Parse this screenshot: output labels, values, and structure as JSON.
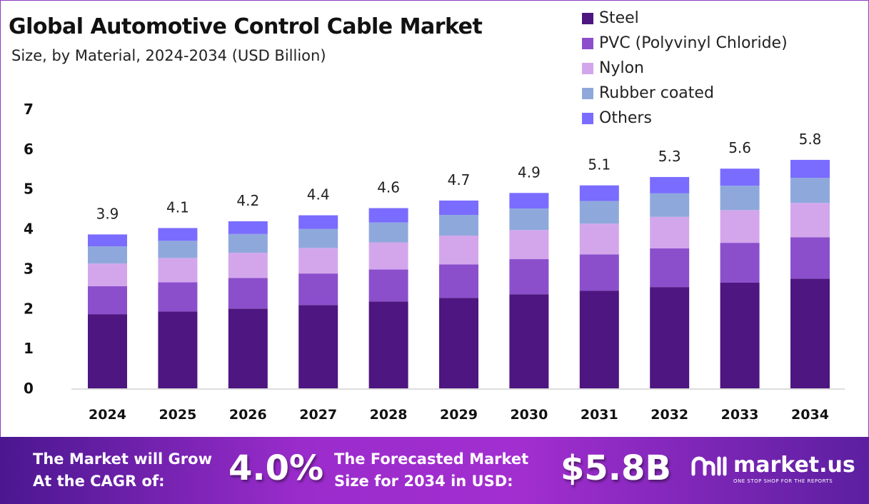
{
  "chart_data": {
    "type": "bar",
    "stacked": true,
    "title": "Global Automotive Control Cable Market",
    "subtitle": "Size, by Material, 2024-2034 (USD Billion)",
    "categories": [
      "2024",
      "2025",
      "2026",
      "2027",
      "2028",
      "2029",
      "2030",
      "2031",
      "2032",
      "2033",
      "2034"
    ],
    "series": [
      {
        "name": "Steel",
        "color": "#4e1680",
        "values": [
          1.86,
          1.93,
          2.0,
          2.09,
          2.18,
          2.27,
          2.36,
          2.45,
          2.54,
          2.65,
          2.75
        ]
      },
      {
        "name": "PVC (Polyvinyl Chloride)",
        "color": "#8b4fcc",
        "values": [
          0.7,
          0.73,
          0.77,
          0.79,
          0.8,
          0.84,
          0.88,
          0.91,
          0.97,
          1.0,
          1.04
        ]
      },
      {
        "name": "Nylon",
        "color": "#d3a6ec",
        "values": [
          0.57,
          0.61,
          0.63,
          0.64,
          0.68,
          0.72,
          0.73,
          0.77,
          0.79,
          0.82,
          0.86
        ]
      },
      {
        "name": "Rubber coated",
        "color": "#8fa8dc",
        "values": [
          0.43,
          0.43,
          0.47,
          0.48,
          0.5,
          0.52,
          0.54,
          0.57,
          0.59,
          0.61,
          0.63
        ]
      },
      {
        "name": "Others",
        "color": "#7a6cff",
        "values": [
          0.3,
          0.32,
          0.32,
          0.34,
          0.36,
          0.36,
          0.39,
          0.39,
          0.41,
          0.43,
          0.45
        ]
      }
    ],
    "totals": [
      "3.9",
      "4.1",
      "4.2",
      "4.4",
      "4.6",
      "4.7",
      "4.9",
      "5.1",
      "5.3",
      "5.6",
      "5.8"
    ],
    "yticks": [
      "0",
      "1",
      "2",
      "3",
      "4",
      "5",
      "6",
      "7"
    ],
    "ylim": [
      0,
      7
    ],
    "grid": false,
    "legend": "top-right"
  },
  "banner": {
    "cagr_label_1": "The Market will Grow",
    "cagr_label_2": "At the CAGR of:",
    "cagr_value": "4.0%",
    "forecast_label_1": "The Forecasted Market",
    "forecast_label_2": "Size for 2034 in USD:",
    "forecast_value": "$5.8B",
    "logo_name": "market.us",
    "logo_tagline": "ONE STOP SHOP FOR THE REPORTS"
  }
}
